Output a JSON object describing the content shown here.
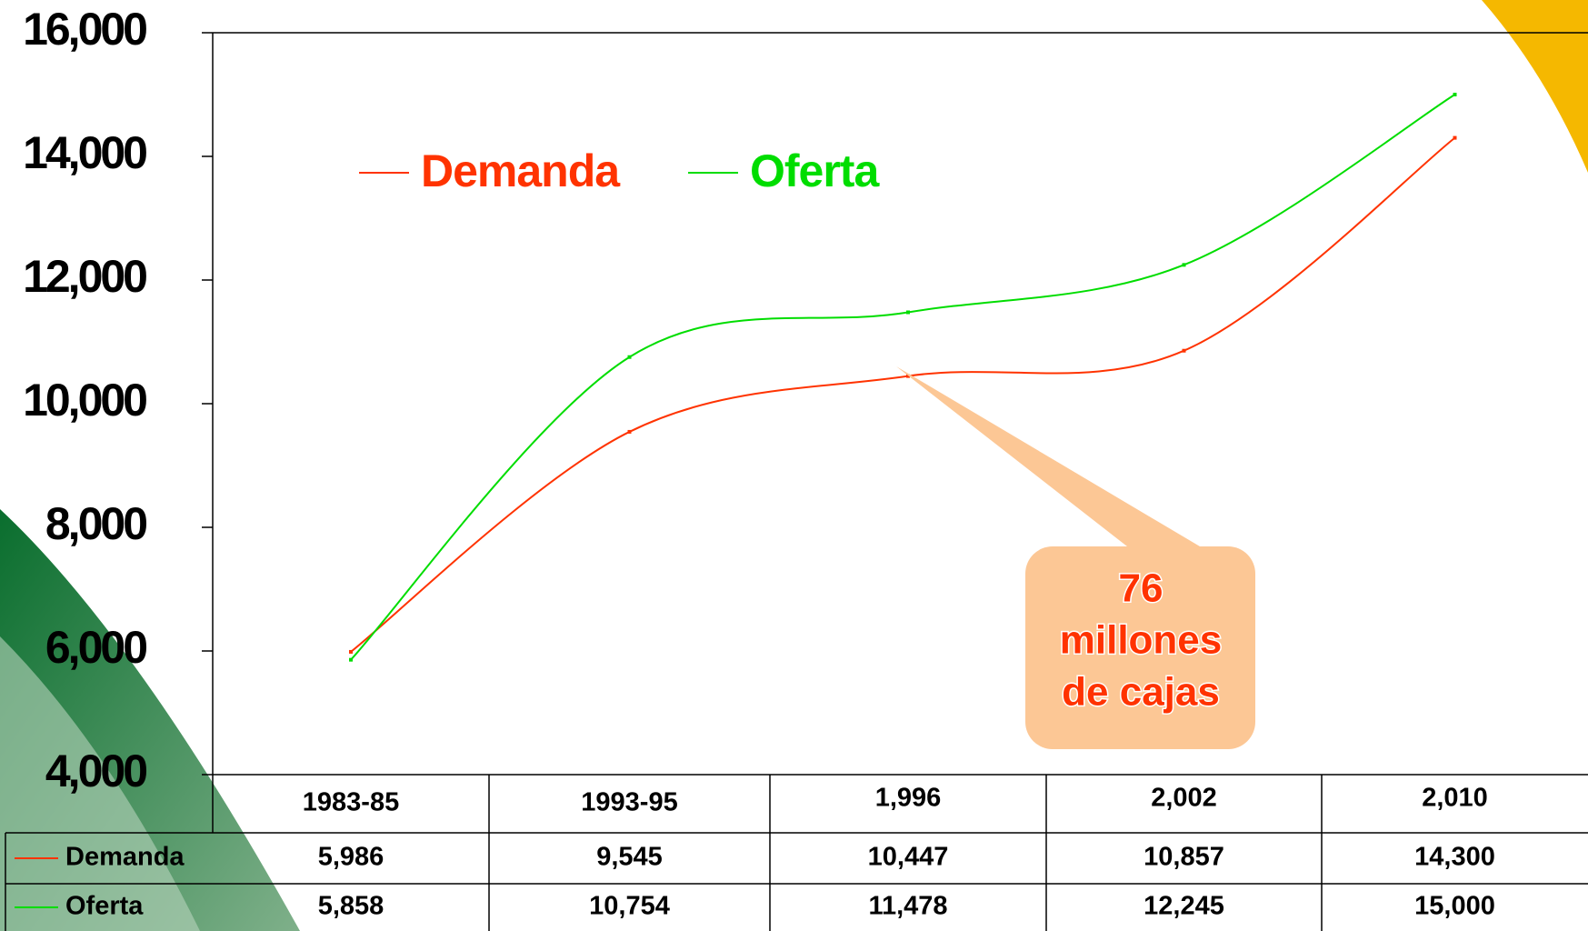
{
  "chart_data": {
    "type": "line",
    "categories": [
      "1983-85",
      "1993-95",
      "1,996",
      "2,002",
      "2,010"
    ],
    "series": [
      {
        "name": "Demanda",
        "color": "#ff3300",
        "values": [
          5986,
          9545,
          10447,
          10857,
          14300
        ],
        "value_labels": [
          "5,986",
          "9,545",
          "10,447",
          "10,857",
          "14,300"
        ]
      },
      {
        "name": "Oferta",
        "color": "#00dd00",
        "values": [
          5858,
          10754,
          11478,
          12245,
          15000
        ],
        "value_labels": [
          "5,858",
          "10,754",
          "11,478",
          "12,245",
          "15,000"
        ]
      }
    ],
    "ylim": [
      4000,
      16000
    ],
    "yticks": [
      {
        "value": 4000,
        "label": "4,000"
      },
      {
        "value": 6000,
        "label": "6,000"
      },
      {
        "value": 8000,
        "label": "8,000"
      },
      {
        "value": 10000,
        "label": "10,000"
      },
      {
        "value": 12000,
        "label": "12,000"
      },
      {
        "value": 14000,
        "label": "14,000"
      },
      {
        "value": 16000,
        "label": "16,000"
      }
    ],
    "legend": "top-left",
    "annotation": [
      "76",
      "millones",
      "de cajas"
    ]
  }
}
